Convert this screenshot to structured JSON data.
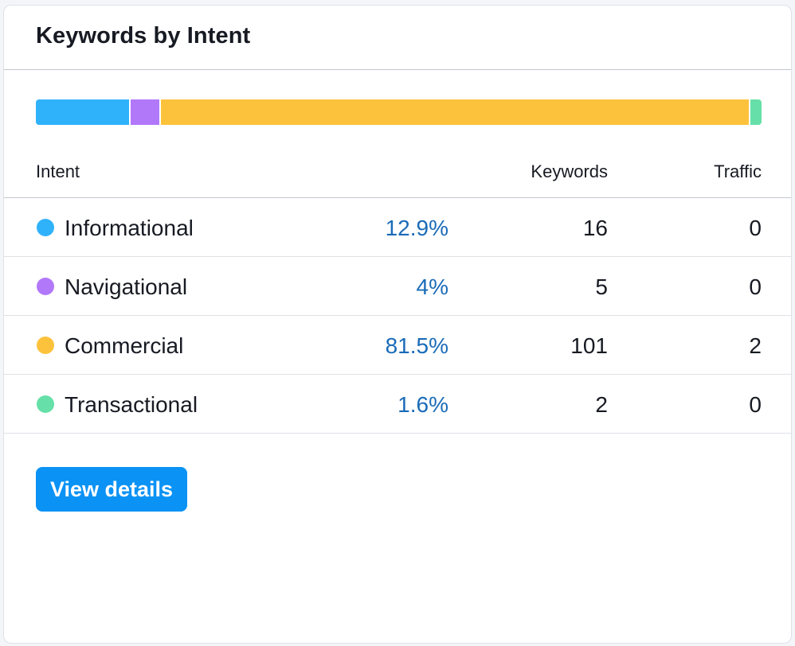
{
  "card": {
    "title": "Keywords by Intent"
  },
  "intent_bar": {
    "segments": [
      {
        "name": "Informational",
        "share_percent": 12.9,
        "color": "#30b2fb"
      },
      {
        "name": "Navigational",
        "share_percent": 4,
        "color": "#b278fa"
      },
      {
        "name": "Commercial",
        "share_percent": 81.5,
        "color": "#fdc23c"
      },
      {
        "name": "Transactional",
        "share_percent": 1.6,
        "color": "#66e0a8"
      }
    ]
  },
  "table": {
    "headers": {
      "intent": "Intent",
      "keywords": "Keywords",
      "traffic": "Traffic"
    },
    "rows": [
      {
        "intent": "Informational",
        "percent": "12.9%",
        "keywords": "16",
        "traffic": "0",
        "color": "#30b2fb"
      },
      {
        "intent": "Navigational",
        "percent": "4%",
        "keywords": "5",
        "traffic": "0",
        "color": "#b278fa"
      },
      {
        "intent": "Commercial",
        "percent": "81.5%",
        "keywords": "101",
        "traffic": "2",
        "color": "#fdc23c"
      },
      {
        "intent": "Transactional",
        "percent": "1.6%",
        "keywords": "2",
        "traffic": "0",
        "color": "#66e0a8"
      }
    ]
  },
  "actions": {
    "view_details_label": "View details"
  },
  "colors": {
    "accent": "#0a92f5",
    "link": "#1a6bb8"
  }
}
